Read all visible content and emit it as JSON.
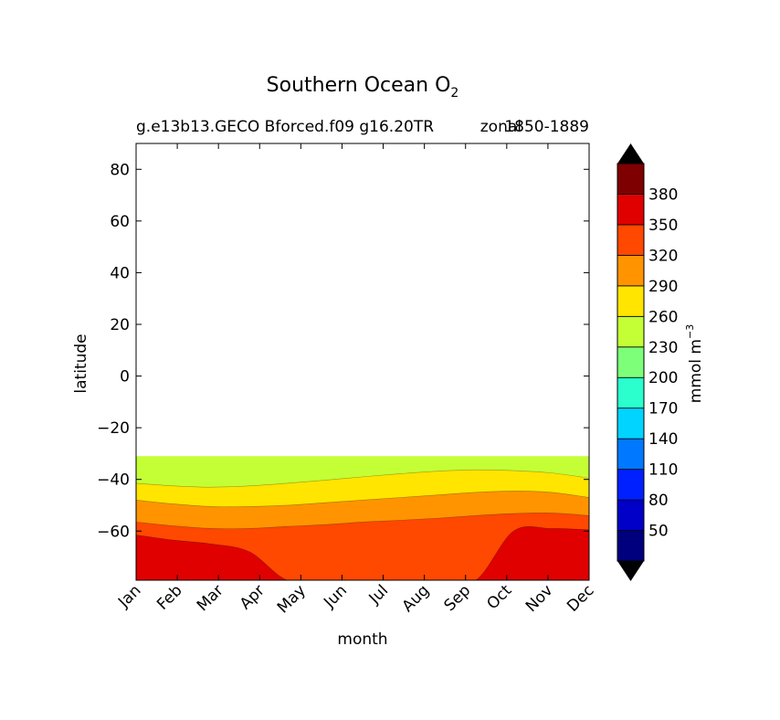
{
  "chart_data": {
    "type": "contour",
    "title": "Southern Ocean O",
    "title_subscript": "2",
    "subtitle_left": "g.e13b13.GECO Bforced.f09 g16.20TR",
    "subtitle_right_1": "zonal",
    "subtitle_right_2": "1850-1889",
    "xlabel": "month",
    "ylabel": "latitude",
    "x_ticks": [
      "Jan",
      "Feb",
      "Mar",
      "Apr",
      "May",
      "Jun",
      "Jul",
      "Aug",
      "Sep",
      "Oct",
      "Nov",
      "Dec"
    ],
    "y_ticks": [
      80,
      60,
      40,
      20,
      0,
      -20,
      -40,
      -60
    ],
    "y_tick_labels": [
      "80",
      "60",
      "40",
      "20",
      "0",
      "−20",
      "−40",
      "−60"
    ],
    "ylim": [
      -79,
      90
    ],
    "data_lat_range": [
      -79,
      -31
    ],
    "colorbar": {
      "label": "mmol m",
      "label_sup": "−3",
      "levels": [
        50,
        80,
        110,
        140,
        170,
        200,
        230,
        260,
        290,
        320,
        350,
        380
      ],
      "tick_labels": [
        "50",
        "80",
        "110",
        "140",
        "170",
        "200",
        "230",
        "260",
        "290",
        "320",
        "350",
        "380"
      ],
      "colors": [
        "#00007f",
        "#0000c8",
        "#0020ff",
        "#0078ff",
        "#00d4ff",
        "#2affcd",
        "#7dff7a",
        "#c4ff36",
        "#ffe500",
        "#ff9400",
        "#ff4800",
        "#e00000",
        "#7f0000"
      ],
      "extend": "both",
      "under_color": "#000000",
      "over_color": "#000000"
    },
    "contours": [
      {
        "level": 260,
        "name": "260 isoline (~-41 Jan to -36 Sep)",
        "lat": [
          -41.5,
          -42.5,
          -43,
          -42.5,
          -41.5,
          -40.3,
          -39,
          -37.8,
          -36.8,
          -36.3,
          -36.6,
          -37.5,
          -39.5
        ]
      },
      {
        "level": 290,
        "name": "290 isoline",
        "lat": [
          -48,
          -49.5,
          -50.5,
          -50.5,
          -50,
          -49,
          -48,
          -47,
          -46,
          -45,
          -44.5,
          -45,
          -47
        ]
      },
      {
        "level": 320,
        "name": "320 isoline",
        "lat": [
          -56.5,
          -58,
          -59,
          -59,
          -58.2,
          -57.5,
          -56.5,
          -55.8,
          -55,
          -54,
          -53.2,
          -53,
          -54
        ]
      },
      {
        "level": 350,
        "name": "350 isoline",
        "lat": [
          -61.5,
          -63.5,
          -65,
          -68,
          -79,
          -79,
          -79,
          -79,
          -79,
          -79,
          -60,
          -59,
          -59.5
        ]
      }
    ]
  }
}
